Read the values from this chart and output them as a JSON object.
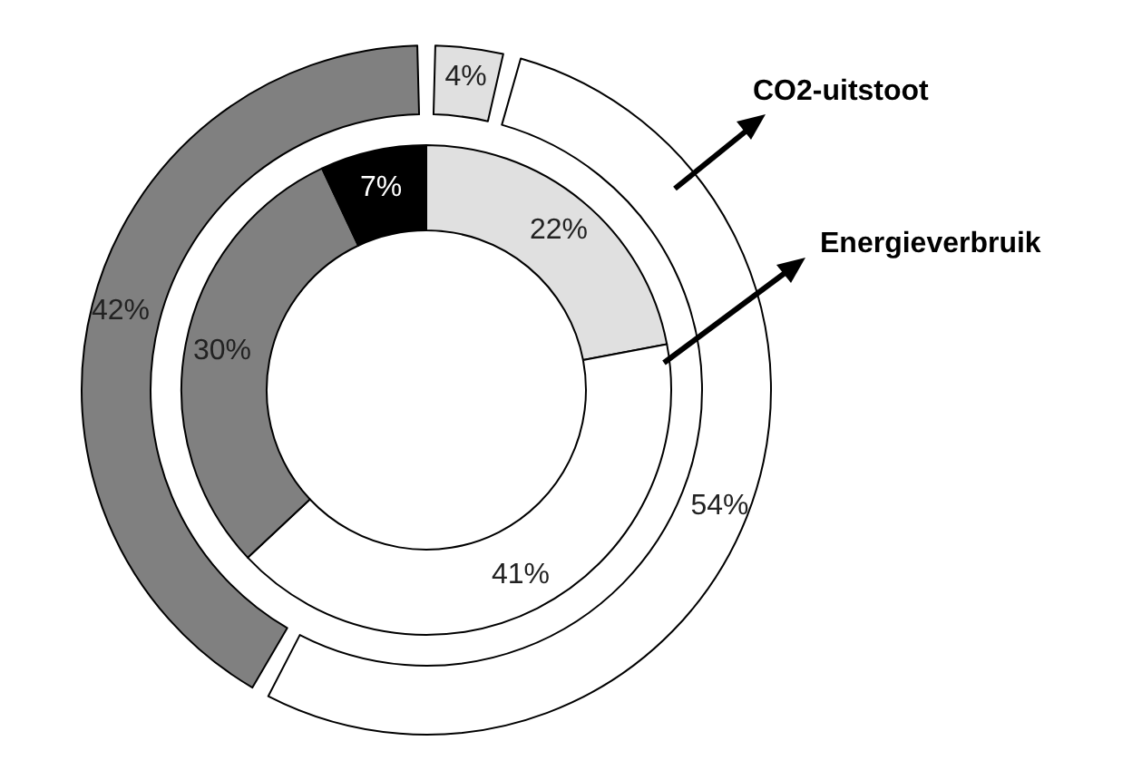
{
  "chart_data": {
    "type": "donut",
    "legend": false,
    "categories": [
      null,
      null,
      null,
      null
    ],
    "series": [
      {
        "name": "Energieverbruik",
        "values": [
          22,
          41,
          30,
          7
        ],
        "colors": [
          "#e0e0e0",
          "#ffffff",
          "#808080",
          "#000000"
        ],
        "value_labels": [
          "22%",
          "41%",
          "30%",
          "7%"
        ]
      },
      {
        "name": "CO2-uitstoot",
        "values": [
          4,
          54,
          42,
          null
        ],
        "colors": [
          "#e0e0e0",
          "#ffffff",
          "#808080",
          "#000000"
        ],
        "value_labels": [
          "4%",
          "54%",
          "42%",
          null
        ]
      }
    ]
  }
}
